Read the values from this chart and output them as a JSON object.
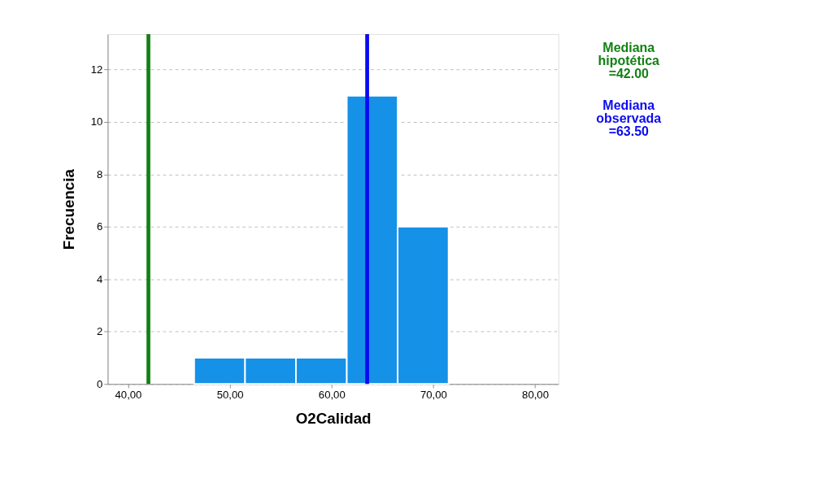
{
  "chart_data": {
    "type": "histogram",
    "xlabel": "O2Calidad",
    "ylabel": "Frecuencia",
    "bins": [
      46.5,
      51.5,
      56.5,
      61.5,
      66.5,
      71.5
    ],
    "values": [
      1,
      1,
      1,
      11,
      6
    ],
    "color": "#1591e8",
    "xlim": [
      38,
      82.3
    ],
    "xticks": [
      {
        "value": 40,
        "label": "40,00"
      },
      {
        "value": 50,
        "label": "50,00"
      },
      {
        "value": 60,
        "label": "60,00"
      },
      {
        "value": 70,
        "label": "70,00"
      },
      {
        "value": 80,
        "label": "80,00"
      }
    ],
    "ylim": [
      0,
      13.35
    ],
    "yticks": [
      0,
      2,
      4,
      6,
      8,
      10,
      12
    ],
    "grid": "y",
    "ref_lines": [
      {
        "axis": "x",
        "value": 42.0,
        "label": "Mediana hipotética =42.00",
        "color": "#138013"
      },
      {
        "axis": "x",
        "value": 63.5,
        "label": "Mediana observada =63.50",
        "color": "#0a0af0"
      }
    ]
  }
}
